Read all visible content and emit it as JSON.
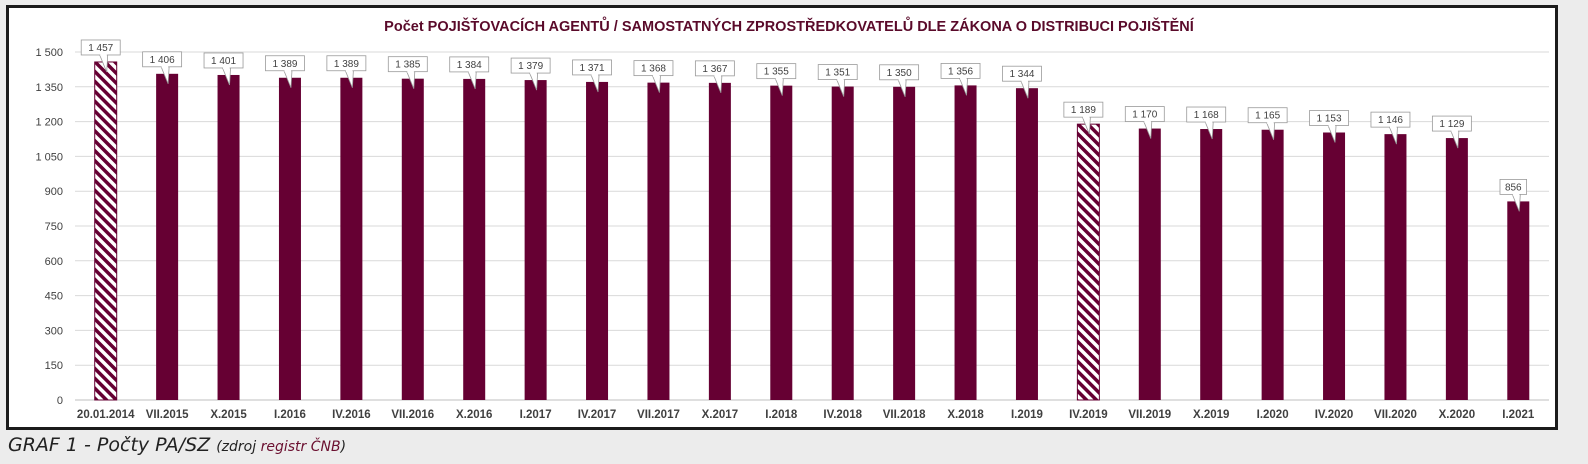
{
  "chart_data": {
    "type": "bar",
    "title": "Počet POJIŠŤOVACÍCH AGENTŮ / SAMOSTATNÝCH ZPROSTŘEDKOVATELŮ DLE ZÁKONA O DISTRIBUCI POJIŠTĚNÍ",
    "categories": [
      "20.01.2014",
      "VII.2015",
      "X.2015",
      "I.2016",
      "IV.2016",
      "VII.2016",
      "X.2016",
      "I.2017",
      "IV.2017",
      "VII.2017",
      "X.2017",
      "I.2018",
      "IV.2018",
      "VII.2018",
      "X.2018",
      "I.2019",
      "IV.2019",
      "VII.2019",
      "X.2019",
      "I.2020",
      "IV.2020",
      "VII.2020",
      "X.2020",
      "I.2021"
    ],
    "values": [
      1457,
      1406,
      1401,
      1389,
      1389,
      1385,
      1384,
      1379,
      1371,
      1368,
      1367,
      1355,
      1351,
      1350,
      1356,
      1344,
      1189,
      1170,
      1168,
      1165,
      1153,
      1146,
      1129,
      856
    ],
    "value_labels": [
      "1 457",
      "1 406",
      "1 401",
      "1 389",
      "1 389",
      "1 385",
      "1 384",
      "1 379",
      "1 371",
      "1 368",
      "1 367",
      "1 355",
      "1 351",
      "1 350",
      "1 356",
      "1 344",
      "1 189",
      "1 170",
      "1 168",
      "1 165",
      "1 153",
      "1 146",
      "1 129",
      "856"
    ],
    "hatched": [
      true,
      false,
      false,
      false,
      false,
      false,
      false,
      false,
      false,
      false,
      false,
      false,
      false,
      false,
      false,
      false,
      true,
      false,
      false,
      false,
      false,
      false,
      false,
      false
    ],
    "ylim": [
      0,
      1500
    ],
    "yticks": [
      0,
      150,
      300,
      450,
      600,
      750,
      900,
      1050,
      1200,
      1350,
      1500
    ],
    "ytick_labels": [
      "0",
      "150",
      "300",
      "450",
      "600",
      "750",
      "900",
      "1 050",
      "1 200",
      "1 350",
      "1 500"
    ],
    "xlabel": "",
    "ylabel": "",
    "grid": true,
    "legend": "none",
    "colors": {
      "bar": "#660033",
      "grid": "#d9d9d9",
      "title": "#5a0a2a",
      "axis_text": "#404040"
    }
  },
  "caption": {
    "main": "GRAF 1 - Počty PA/SZ",
    "source_prefix": "(zdroj ",
    "source_link": "registr ČNB",
    "source_suffix": ")"
  }
}
